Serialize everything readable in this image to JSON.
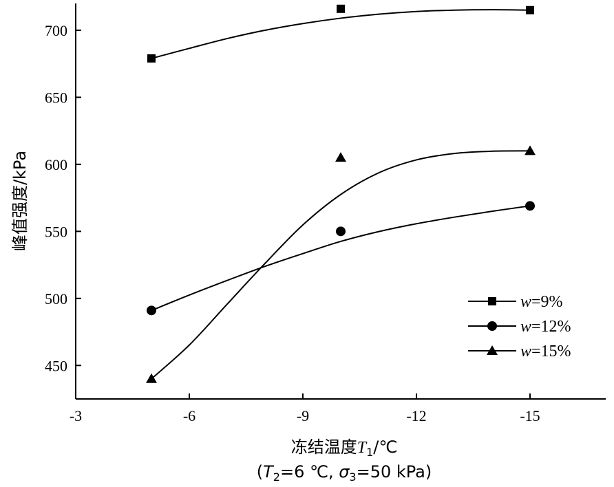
{
  "chart_data": {
    "type": "line",
    "title": "",
    "xlabel": "冻结温度T1/℃",
    "xlabel_parts": {
      "main": "冻结温度",
      "var": "T",
      "sub": "1",
      "unit": "/℃"
    },
    "xlabel_note": "(T2=6 ℃, σ3=50 kPa)",
    "xlabel_note_parts": {
      "open": "(",
      "var1": "T",
      "sub1": "2",
      "val1": "=6 ℃, ",
      "var2": "σ",
      "sub2": "3",
      "val2": "=50 kPa)"
    },
    "ylabel": "峰值强度/kPa",
    "xlim": [
      -3,
      -17
    ],
    "ylim": [
      425,
      720
    ],
    "x_ticks": [
      -3,
      -6,
      -9,
      -12,
      -15
    ],
    "y_ticks": [
      450,
      500,
      550,
      600,
      650,
      700
    ],
    "grid": false,
    "legend_position": "bottom-right",
    "series": [
      {
        "name": "w=9%",
        "name_parts": {
          "var": "w",
          "rest": "=9%"
        },
        "marker": "square",
        "points": [
          {
            "x": -5,
            "y": 679
          },
          {
            "x": -10,
            "y": 716
          },
          {
            "x": -15,
            "y": 715
          }
        ],
        "fit": [
          {
            "x": -5,
            "y": 679
          },
          {
            "x": -6,
            "y": 686.5
          },
          {
            "x": -7,
            "y": 693.8
          },
          {
            "x": -8,
            "y": 700
          },
          {
            "x": -9,
            "y": 705
          },
          {
            "x": -10,
            "y": 709
          },
          {
            "x": -11,
            "y": 712
          },
          {
            "x": -12,
            "y": 714
          },
          {
            "x": -13,
            "y": 715
          },
          {
            "x": -14,
            "y": 715.3
          },
          {
            "x": -15,
            "y": 715
          }
        ]
      },
      {
        "name": "w=12%",
        "name_parts": {
          "var": "w",
          "rest": "=12%"
        },
        "marker": "circle",
        "points": [
          {
            "x": -5,
            "y": 491
          },
          {
            "x": -10,
            "y": 550
          },
          {
            "x": -15,
            "y": 569
          }
        ],
        "fit": [
          {
            "x": -5,
            "y": 491
          },
          {
            "x": -6,
            "y": 502.5
          },
          {
            "x": -7,
            "y": 513.4
          },
          {
            "x": -8,
            "y": 523.9
          },
          {
            "x": -9,
            "y": 533.4
          },
          {
            "x": -10,
            "y": 542.5
          },
          {
            "x": -11,
            "y": 549.8
          },
          {
            "x": -12,
            "y": 555.7
          },
          {
            "x": -13,
            "y": 560.6
          },
          {
            "x": -14,
            "y": 565
          },
          {
            "x": -15,
            "y": 569
          }
        ]
      },
      {
        "name": "w=15%",
        "name_parts": {
          "var": "w",
          "rest": "=15%"
        },
        "marker": "triangle",
        "points": [
          {
            "x": -5,
            "y": 440
          },
          {
            "x": -10,
            "y": 605
          },
          {
            "x": -15,
            "y": 610
          }
        ],
        "fit": [
          {
            "x": -5,
            "y": 440
          },
          {
            "x": -6,
            "y": 465.2
          },
          {
            "x": -7,
            "y": 495.7
          },
          {
            "x": -8,
            "y": 526.1
          },
          {
            "x": -9,
            "y": 554.8
          },
          {
            "x": -10,
            "y": 577.5
          },
          {
            "x": -11,
            "y": 593.6
          },
          {
            "x": -12,
            "y": 603.3
          },
          {
            "x": -13,
            "y": 608.1
          },
          {
            "x": -14,
            "y": 609.8
          },
          {
            "x": -15,
            "y": 610
          }
        ]
      }
    ]
  }
}
